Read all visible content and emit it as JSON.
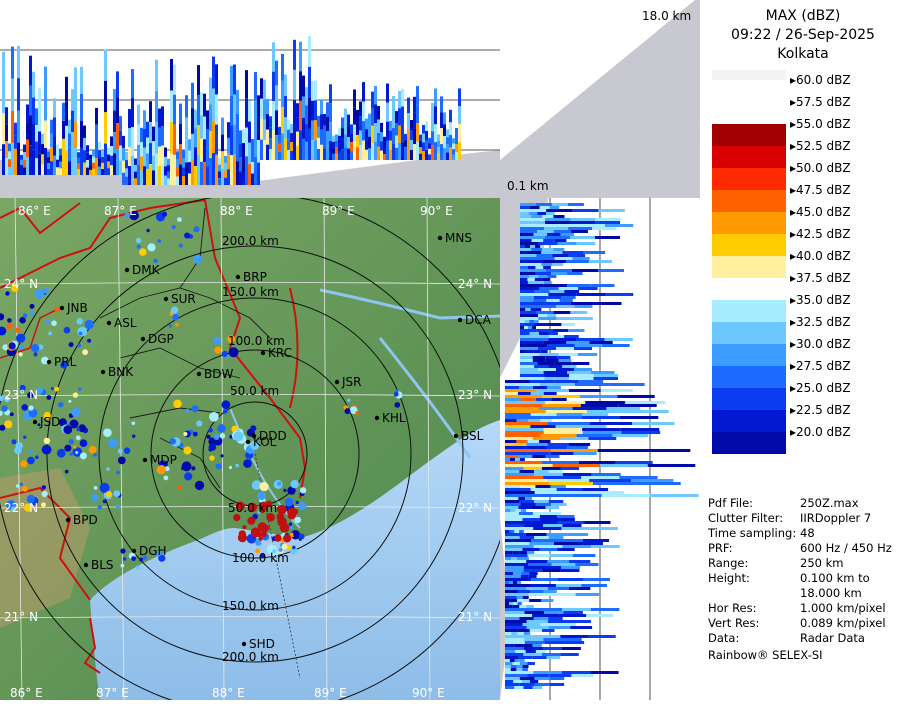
{
  "header": {
    "product": "MAX (dBZ)",
    "datetime": "09:22 / 26-Sep-2025",
    "station": "Kolkata"
  },
  "height_labels": {
    "top": "18.0 km",
    "bottom": "0.1 km"
  },
  "legend": {
    "steps": [
      {
        "label": "60.0 dBZ",
        "color": "#ffffff"
      },
      {
        "label": "57.5 dBZ",
        "color": "#ffffff"
      },
      {
        "label": "55.0 dBZ",
        "color": "#a00000"
      },
      {
        "label": "52.5 dBZ",
        "color": "#d80000"
      },
      {
        "label": "50.0 dBZ",
        "color": "#ff2a00"
      },
      {
        "label": "47.5 dBZ",
        "color": "#ff6000"
      },
      {
        "label": "45.0 dBZ",
        "color": "#ff9a00"
      },
      {
        "label": "42.5 dBZ",
        "color": "#ffcc00"
      },
      {
        "label": "40.0 dBZ",
        "color": "#fff0a0"
      },
      {
        "label": "37.5 dBZ",
        "color": "#ffffff"
      },
      {
        "label": "35.0 dBZ",
        "color": "#a8ecff"
      },
      {
        "label": "32.5 dBZ",
        "color": "#6cc8ff"
      },
      {
        "label": "30.0 dBZ",
        "color": "#3c9cff"
      },
      {
        "label": "27.5 dBZ",
        "color": "#1e6cff"
      },
      {
        "label": "25.0 dBZ",
        "color": "#0a3cf0"
      },
      {
        "label": "22.5 dBZ",
        "color": "#0018d0"
      },
      {
        "label": "20.0 dBZ",
        "color": "#000aa8"
      }
    ]
  },
  "info": [
    {
      "key": "Pdf File:",
      "value": "250Z.max"
    },
    {
      "key": "Clutter Filter:",
      "value": "IIRDoppler 7"
    },
    {
      "key": "Time sampling:",
      "value": "48"
    },
    {
      "key": "PRF:",
      "value": "600 Hz / 450 Hz"
    },
    {
      "key": "Range:",
      "value": "250 km"
    },
    {
      "key": "Height:",
      "value": "0.100 km to"
    },
    {
      "key": "",
      "value": "18.000 km"
    },
    {
      "key": "Hor Res:",
      "value": "1.000 km/pixel"
    },
    {
      "key": "Vert Res:",
      "value": "0.089 km/pixel"
    },
    {
      "key": "Data:",
      "value": "Radar Data"
    }
  ],
  "footer": "Rainbow® SELEX-SI",
  "map": {
    "lon_labels": [
      "86° E",
      "87° E",
      "88° E",
      "89° E",
      "90° E"
    ],
    "lat_labels": [
      "24° N",
      "23° N",
      "22° N",
      "21° N"
    ],
    "range_labels": [
      "200.0 km",
      "150.0 km",
      "100.0 km",
      "50.0 km",
      "50.0 km",
      "100.0 km",
      "150.0 km",
      "200.0 km"
    ],
    "stations": [
      "MNS",
      "DMK",
      "BRP",
      "SUR",
      "JNB",
      "ASL",
      "DGP",
      "KRC",
      "DCA",
      "PRL",
      "BNK",
      "BDW",
      "JSR",
      "KHL",
      "JSD",
      "BSL",
      "KOL",
      "DDD",
      "MDP",
      "BPD",
      "DGH",
      "BLS",
      "SHD"
    ],
    "colors": {
      "land": "#6f9e60",
      "sea": "#9fc8f0",
      "border": "#d01010",
      "district": "#1a1a1a",
      "range_ring": "#111111"
    }
  }
}
